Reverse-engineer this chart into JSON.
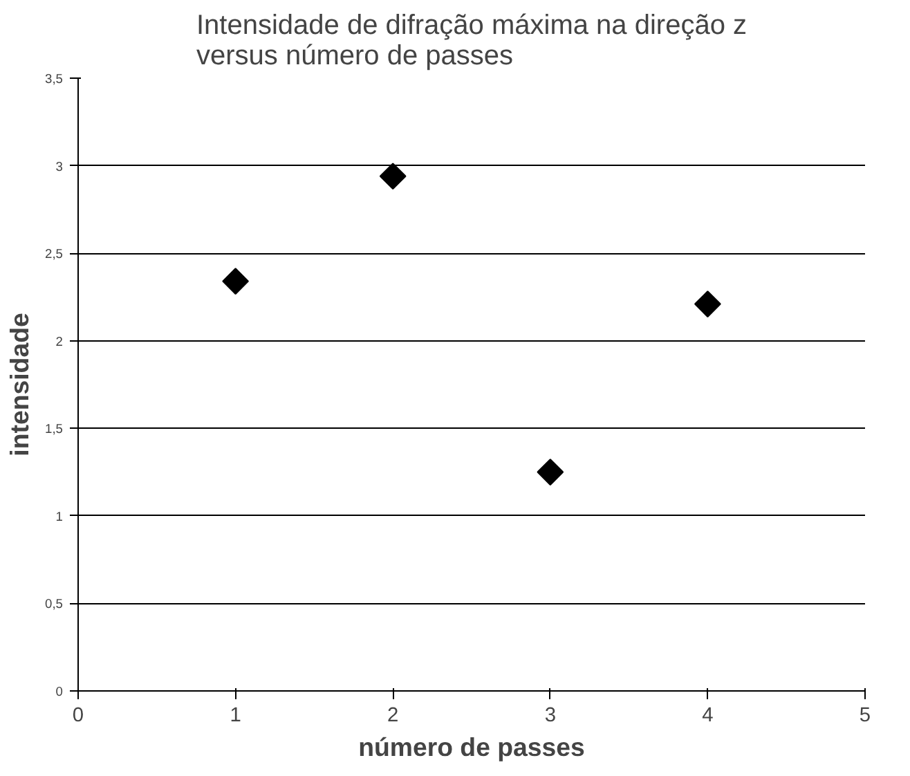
{
  "chart_data": {
    "type": "scatter",
    "title": "Intensidade de difração máxima na direção z\nversus número de passes",
    "xlabel": "número de passes",
    "ylabel": "intensidade",
    "x": [
      1,
      2,
      3,
      4
    ],
    "values": [
      2.34,
      2.94,
      1.25,
      2.21
    ],
    "color": "#000000",
    "marker": "diamond",
    "xlim": [
      0,
      5
    ],
    "xticks": [
      0,
      1,
      2,
      3,
      4,
      5
    ],
    "ylim": [
      0,
      3.5
    ],
    "yticks": [
      0,
      {
        "value": 0.5,
        "label": "0,5"
      },
      1,
      {
        "value": 1.5,
        "label": "1,5"
      },
      2,
      {
        "value": 2.5,
        "label": "2,5"
      },
      3,
      {
        "value": 3.5,
        "label": "3,5"
      }
    ],
    "grid": "y"
  }
}
